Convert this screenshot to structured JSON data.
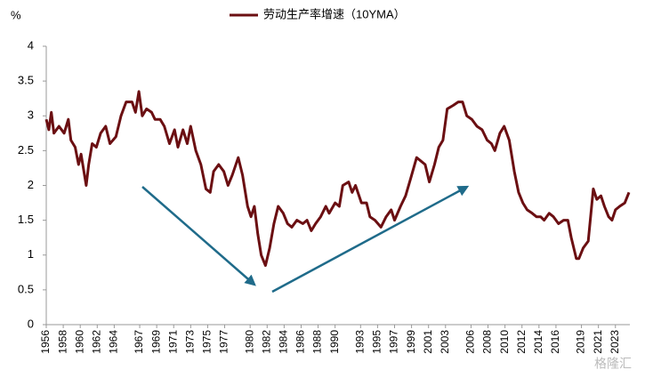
{
  "chart_data": {
    "type": "line",
    "y_label": "%",
    "watermark": "格隆汇",
    "x": [
      1956.0,
      1956.3,
      1956.6,
      1956.9,
      1957.5,
      1958.1,
      1958.6,
      1958.9,
      1959.4,
      1959.8,
      1960.1,
      1960.7,
      1961.0,
      1961.4,
      1961.9,
      1962.4,
      1963.0,
      1963.5,
      1964.2,
      1964.8,
      1965.4,
      1966.1,
      1966.5,
      1966.9,
      1967.3,
      1967.8,
      1968.4,
      1968.8,
      1969.4,
      1969.9,
      1970.5,
      1971.1,
      1971.5,
      1972.1,
      1972.6,
      1973.0,
      1973.6,
      1974.2,
      1974.8,
      1975.3,
      1975.7,
      1976.3,
      1976.9,
      1977.4,
      1977.9,
      1978.6,
      1979.1,
      1979.7,
      1980.1,
      1980.5,
      1980.9,
      1981.3,
      1981.8,
      1982.3,
      1982.8,
      1983.3,
      1983.9,
      1984.4,
      1984.9,
      1985.5,
      1986.2,
      1986.7,
      1987.2,
      1987.7,
      1988.3,
      1988.9,
      1989.3,
      1990.0,
      1990.5,
      1990.9,
      1991.6,
      1992.0,
      1992.4,
      1993.1,
      1993.7,
      1994.1,
      1994.7,
      1995.4,
      1996.0,
      1996.6,
      1997.0,
      1997.7,
      1998.3,
      1998.9,
      1999.6,
      2000.1,
      2000.6,
      2001.1,
      2001.7,
      2002.2,
      2002.7,
      2003.2,
      2003.9,
      2004.5,
      2005.0,
      2005.5,
      2006.1,
      2006.7,
      2007.3,
      2007.9,
      2008.4,
      2008.8,
      2009.4,
      2009.9,
      2010.5,
      2011.1,
      2011.6,
      2012.1,
      2012.6,
      2013.2,
      2013.7,
      2014.2,
      2014.6,
      2015.2,
      2015.7,
      2016.3,
      2016.9,
      2017.4,
      2017.8,
      2018.4,
      2018.7,
      2019.2,
      2019.8,
      2020.4,
      2020.8,
      2021.3,
      2021.7,
      2022.2,
      2022.6,
      2023.0,
      2023.5,
      2024.1,
      2024.6
    ],
    "series": [
      {
        "name": "劳动生产率增速（10YMA）",
        "color": "#6b0f12",
        "values": [
          2.95,
          2.8,
          3.05,
          2.75,
          2.85,
          2.75,
          2.95,
          2.65,
          2.55,
          2.3,
          2.45,
          2.0,
          2.3,
          2.6,
          2.55,
          2.75,
          2.85,
          2.6,
          2.7,
          3.0,
          3.2,
          3.2,
          3.05,
          3.35,
          3.0,
          3.1,
          3.05,
          2.95,
          2.95,
          2.85,
          2.6,
          2.8,
          2.55,
          2.8,
          2.6,
          2.85,
          2.5,
          2.3,
          1.95,
          1.9,
          2.2,
          2.3,
          2.2,
          2.0,
          2.15,
          2.4,
          2.15,
          1.7,
          1.55,
          1.7,
          1.3,
          1.0,
          0.85,
          1.1,
          1.45,
          1.7,
          1.6,
          1.45,
          1.4,
          1.5,
          1.45,
          1.5,
          1.35,
          1.45,
          1.55,
          1.7,
          1.6,
          1.75,
          1.7,
          2.0,
          2.05,
          1.9,
          2.0,
          1.75,
          1.75,
          1.55,
          1.5,
          1.4,
          1.55,
          1.65,
          1.5,
          1.7,
          1.85,
          2.1,
          2.4,
          2.35,
          2.3,
          2.05,
          2.3,
          2.55,
          2.65,
          3.1,
          3.15,
          3.2,
          3.2,
          3.0,
          2.95,
          2.85,
          2.8,
          2.65,
          2.6,
          2.5,
          2.75,
          2.85,
          2.65,
          2.2,
          1.9,
          1.75,
          1.65,
          1.6,
          1.55,
          1.55,
          1.5,
          1.6,
          1.55,
          1.45,
          1.5,
          1.5,
          1.25,
          0.95,
          0.95,
          1.1,
          1.2,
          1.95,
          1.8,
          1.85,
          1.7,
          1.55,
          1.5,
          1.65,
          1.7,
          1.75,
          1.9
        ]
      }
    ],
    "xlim": [
      1956,
      2024.7
    ],
    "xticks": [
      1956,
      1958,
      1960,
      1962,
      1964,
      1967,
      1969,
      1971,
      1973,
      1975,
      1977,
      1980,
      1982,
      1984,
      1986,
      1988,
      1990,
      1993,
      1995,
      1997,
      1999,
      2001,
      2003,
      2006,
      2008,
      2010,
      2012,
      2014,
      2016,
      2019,
      2021,
      2023
    ],
    "ylim": [
      0,
      4
    ],
    "yticks": [
      0,
      0.5,
      1,
      1.5,
      2,
      2.5,
      3,
      3.5,
      4
    ]
  }
}
